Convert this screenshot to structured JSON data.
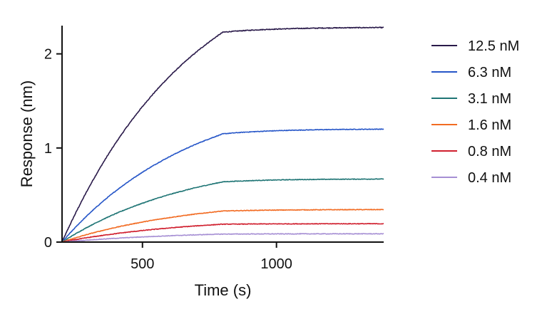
{
  "chart_data": {
    "type": "line",
    "title": "",
    "xlabel": "Time (s)",
    "ylabel": "Response (nm)",
    "xlim": [
      200,
      1400
    ],
    "ylim": [
      0,
      2.3
    ],
    "x_ticks": [
      {
        "value": 500,
        "label": "500"
      },
      {
        "value": 1000,
        "label": "1000"
      }
    ],
    "y_ticks": [
      {
        "value": 0,
        "label": "0"
      },
      {
        "value": 1,
        "label": "1"
      },
      {
        "value": 2,
        "label": "2"
      }
    ],
    "grid": false,
    "legend_position": "right",
    "phase_switch_x": 800,
    "series": [
      {
        "name": "12.5 nM",
        "color": "#2a1a4a",
        "association_end": 2.23,
        "final": 2.28
      },
      {
        "name": "6.3 nM",
        "color": "#2656c8",
        "association_end": 1.15,
        "final": 1.2
      },
      {
        "name": "3.1 nM",
        "color": "#1f7575",
        "association_end": 0.64,
        "final": 0.67
      },
      {
        "name": "1.6 nM",
        "color": "#f26b22",
        "association_end": 0.33,
        "final": 0.345
      },
      {
        "name": "0.8 nM",
        "color": "#d01f2e",
        "association_end": 0.19,
        "final": 0.195
      },
      {
        "name": "0.4 nM",
        "color": "#a68fd4",
        "association_end": 0.085,
        "final": 0.088
      }
    ]
  }
}
